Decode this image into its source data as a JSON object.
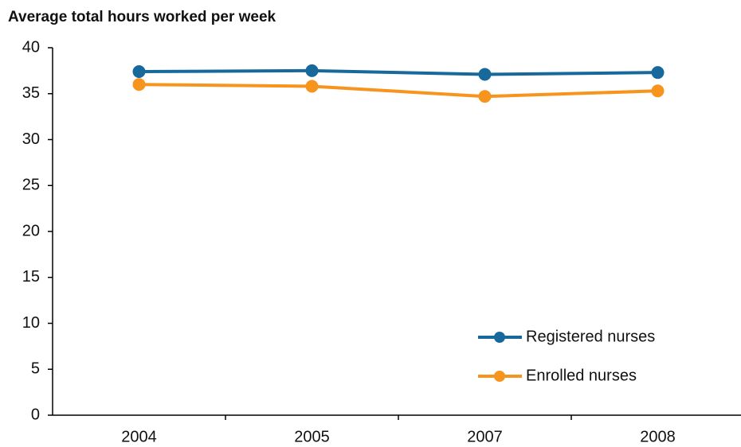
{
  "chart_data": {
    "type": "line",
    "title": "Average total hours worked per week",
    "categories": [
      "2004",
      "2005",
      "2007",
      "2008"
    ],
    "series": [
      {
        "name": "Registered nurses",
        "color": "#17699b",
        "values": [
          37.4,
          37.5,
          37.1,
          37.3
        ]
      },
      {
        "name": "Enrolled nurses",
        "color": "#f7941d",
        "values": [
          36.0,
          35.8,
          34.7,
          35.3
        ]
      }
    ],
    "ylim": [
      0,
      40
    ],
    "yticks": [
      0,
      5,
      10,
      15,
      20,
      25,
      30,
      35,
      40
    ],
    "grid": false,
    "legend": "lower right"
  }
}
